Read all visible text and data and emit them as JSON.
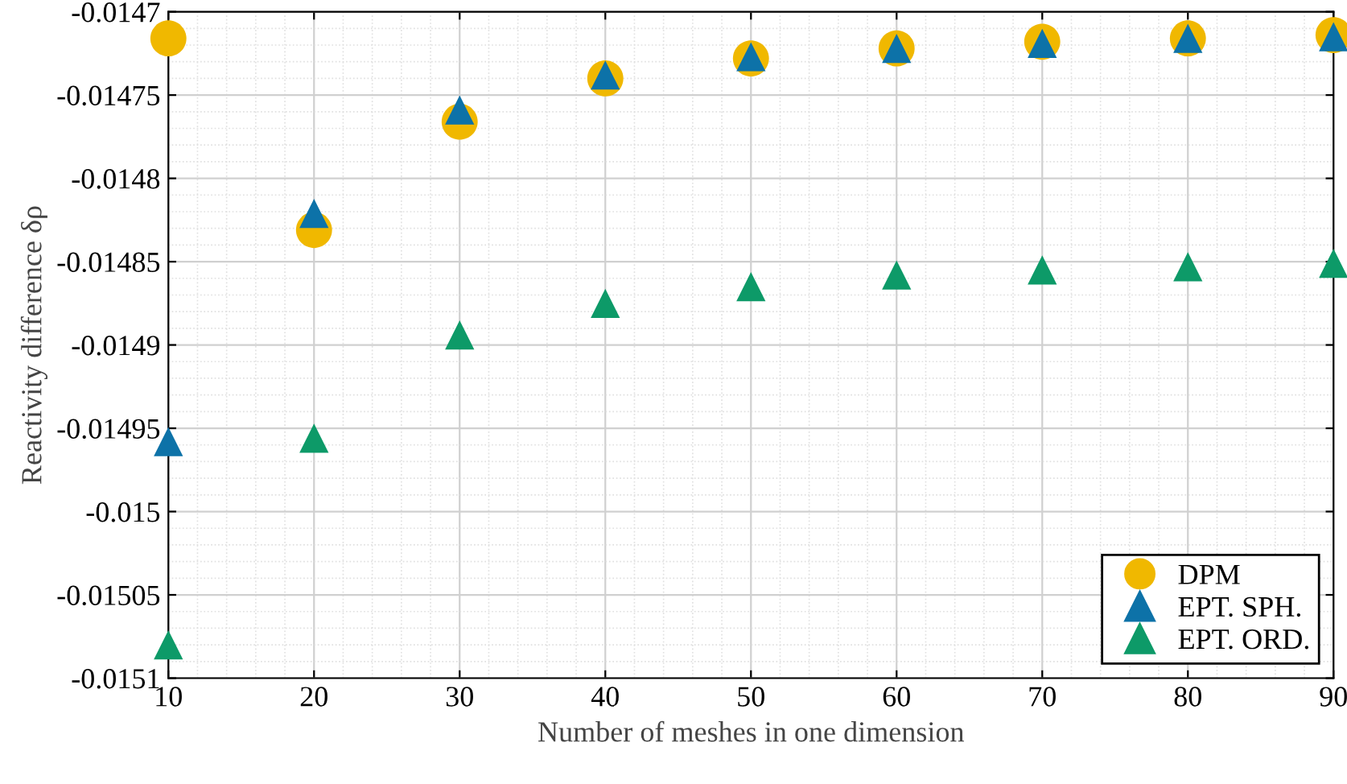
{
  "chart_data": {
    "type": "scatter",
    "xlabel": "Number of meshes in one dimension",
    "ylabel": "Reactivity difference δρ",
    "x": [
      10,
      20,
      30,
      40,
      50,
      60,
      70,
      80,
      90
    ],
    "series": [
      {
        "name": "DPM",
        "color": "#f0b800",
        "marker": "circle",
        "values": [
          -0.014716,
          -0.014831,
          -0.014766,
          -0.01474,
          -0.014728,
          -0.014722,
          -0.014718,
          -0.014716,
          -0.014714
        ]
      },
      {
        "name": "EPT. SPH.",
        "color": "#0d72a8",
        "marker": "triangle",
        "values": [
          -0.014958,
          -0.014821,
          -0.014759,
          -0.014738,
          -0.014727,
          -0.014722,
          -0.014719,
          -0.014716,
          -0.014715
        ]
      },
      {
        "name": "EPT. ORD.",
        "color": "#0d9a68",
        "marker": "triangle",
        "values": [
          -0.01508,
          -0.014956,
          -0.014894,
          -0.014875,
          -0.014865,
          -0.014858,
          -0.014855,
          -0.014853,
          -0.014851
        ]
      }
    ],
    "xlim": [
      10,
      90
    ],
    "xticks": [
      10,
      20,
      30,
      40,
      50,
      60,
      70,
      80,
      90
    ],
    "ylim": [
      -0.0151,
      -0.0147
    ],
    "yticks": [
      -0.0151,
      -0.01505,
      -0.015,
      -0.01495,
      -0.0149,
      -0.01485,
      -0.0148,
      -0.01475,
      -0.0147
    ],
    "grid": true,
    "legend": "bottom right"
  }
}
